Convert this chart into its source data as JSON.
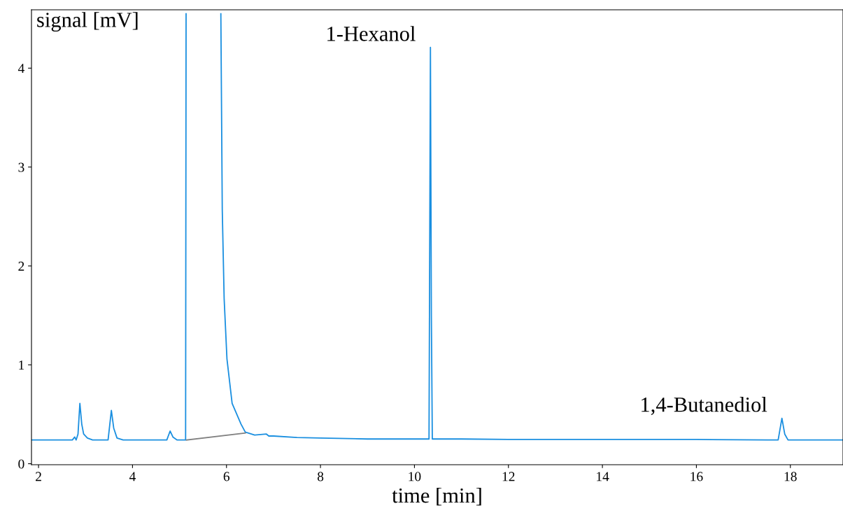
{
  "chart_data": {
    "type": "line",
    "xlabel": "time [min]",
    "ylabel": "signal [mV]",
    "annotations": [
      {
        "text": "1-Hexanol",
        "x": 10.34,
        "y": 4.21
      },
      {
        "text": "1,4-Butanediol",
        "x": 17.82,
        "y": 0.46
      }
    ],
    "series": [
      {
        "color": "#1a8fe0",
        "x": [
          1.85,
          2.5,
          2.72,
          2.77,
          2.8,
          2.84,
          2.88,
          2.92,
          2.96,
          3.04,
          3.15,
          3.3,
          3.48,
          3.55,
          3.6,
          3.67,
          3.8,
          4.5,
          4.73,
          4.8,
          4.86,
          4.95,
          5.13,
          5.14,
          5.15,
          5.88,
          5.91,
          5.95,
          6.01,
          6.12,
          6.31,
          6.4,
          6.6,
          6.85,
          6.9,
          7.0,
          7.5,
          8.0,
          9.0,
          10.2,
          10.31,
          10.34,
          10.36,
          10.38,
          10.45,
          11.0,
          12.0,
          14.0,
          16.0,
          17.5,
          17.74,
          17.82,
          17.88,
          17.95,
          18.5,
          19.12
        ],
        "values": [
          0.24,
          0.24,
          0.24,
          0.27,
          0.24,
          0.3,
          0.61,
          0.4,
          0.3,
          0.26,
          0.24,
          0.24,
          0.24,
          0.54,
          0.36,
          0.26,
          0.24,
          0.24,
          0.24,
          0.33,
          0.27,
          0.24,
          0.24,
          4.55,
          null,
          4.55,
          2.57,
          1.67,
          1.06,
          0.61,
          0.4,
          0.32,
          0.29,
          0.3,
          0.28,
          0.28,
          0.265,
          0.26,
          0.25,
          0.25,
          0.25,
          4.21,
          1.5,
          0.25,
          0.25,
          0.25,
          0.245,
          0.245,
          0.245,
          0.24,
          0.24,
          0.46,
          0.3,
          0.24,
          0.24,
          0.24
        ]
      },
      {
        "color": "#808080",
        "x": [
          5.15,
          6.4
        ],
        "values": [
          0.24,
          0.31
        ]
      }
    ],
    "xlim": [
      1.85,
      19.12
    ],
    "ylim": [
      -0.01,
      4.59
    ],
    "xticks": [
      2,
      4,
      6,
      8,
      10,
      12,
      14,
      16,
      18
    ],
    "yticks": [
      0,
      1,
      2,
      3,
      4
    ],
    "marker": "none",
    "line_style": "solid",
    "grid": false,
    "legend": false
  }
}
